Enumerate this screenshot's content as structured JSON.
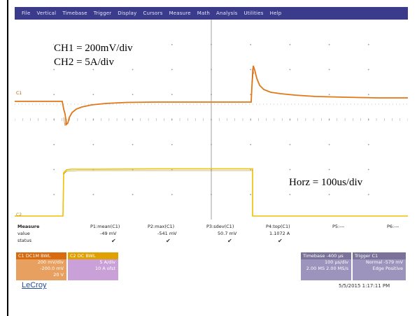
{
  "menu": [
    "File",
    "Vertical",
    "Timebase",
    "Trigger",
    "Display",
    "Cursors",
    "Measure",
    "Math",
    "Analysis",
    "Utilities",
    "Help"
  ],
  "annotations": {
    "ch1_scale": "CH1 = 200mV/div",
    "ch2_scale": "CH2 = 5A/div",
    "horz_scale": "Horz = 100us/div"
  },
  "channel_markers": {
    "c1": "C1",
    "c2": "C2"
  },
  "colors": {
    "menubar": "#3b3b8c",
    "ch1_trace": "#e07818",
    "ch2_trace": "#f0c000",
    "ch1_desc": "#e07818",
    "ch2_desc": "#c9a0d8",
    "timebase_desc": "#8e86b0",
    "grid": "#909090"
  },
  "measure": {
    "headers": [
      "Measure",
      "P1:mean(C1)",
      "P2:max(C1)",
      "P3:sdev(C1)",
      "P4:top(C1)",
      "P5:---",
      "P6:---"
    ],
    "value_label": "value",
    "values": [
      "",
      "-49 mV",
      "-541 mV",
      "50.7 mV",
      "1.1072 A",
      "",
      ""
    ],
    "status_label": "status"
  },
  "descriptors": {
    "c1": {
      "title": "C1  DC1M  BWL",
      "lines": [
        "200 mV/div",
        "-200.0 mV",
        "20 V"
      ]
    },
    "c2": {
      "title": "C2  DC  BWL",
      "lines": [
        "5 A/div",
        "10 A ofst",
        "",
        ""
      ]
    },
    "timebase": {
      "title": "Timebase  -400 µs",
      "lines": [
        "100 µs/div",
        "2.00 MS   2.00 MS/s"
      ]
    },
    "trigger": {
      "title": "Trigger   C1",
      "lines": [
        "Normal   -579 mV",
        "Edge   Positive"
      ]
    }
  },
  "brand": "LeCroy",
  "timestamp": "5/5/2015 1:17:11 PM"
}
